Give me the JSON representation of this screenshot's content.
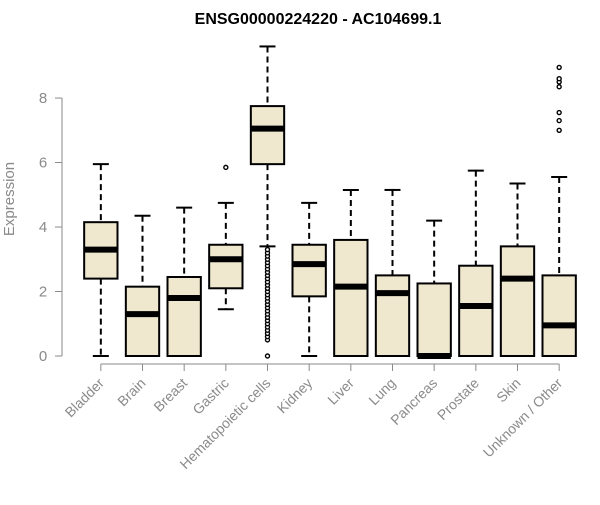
{
  "chart_data": {
    "type": "box",
    "title": "ENSG00000224220 - AC104699.1",
    "xlabel": "",
    "ylabel": "Expression",
    "ylim": [
      0,
      9.8
    ],
    "yticks": [
      0,
      2,
      4,
      6,
      8
    ],
    "box_fill": "#efe8cf",
    "grid": false,
    "categories": [
      "Bladder",
      "Brain",
      "Breast",
      "Gastric",
      "Hematopoietic cells",
      "Kidney",
      "Liver",
      "Lung",
      "Pancreas",
      "Prostate",
      "Skin",
      "Unknown / Other"
    ],
    "boxes": [
      {
        "min": 0.0,
        "q1": 2.4,
        "median": 3.3,
        "q3": 4.15,
        "max": 5.95,
        "outliers": []
      },
      {
        "min": 0.0,
        "q1": 0.0,
        "median": 1.3,
        "q3": 2.15,
        "max": 4.35,
        "outliers": []
      },
      {
        "min": 0.0,
        "q1": 0.0,
        "median": 1.8,
        "q3": 2.45,
        "max": 4.6,
        "outliers": []
      },
      {
        "min": 1.45,
        "q1": 2.1,
        "median": 3.0,
        "q3": 3.45,
        "max": 4.75,
        "outliers": [
          5.85
        ]
      },
      {
        "min": 3.4,
        "q1": 5.95,
        "median": 7.05,
        "q3": 7.75,
        "max": 9.6,
        "outliers": [
          0.0,
          0.5,
          0.6,
          0.7,
          0.8,
          0.9,
          1.0,
          1.1,
          1.2,
          1.3,
          1.4,
          1.5,
          1.6,
          1.7,
          1.8,
          1.9,
          2.0,
          2.1,
          2.2,
          2.3,
          2.4,
          2.5,
          2.6,
          2.7,
          2.8,
          2.9,
          3.0,
          3.1,
          3.2,
          3.3
        ]
      },
      {
        "min": 0.0,
        "q1": 1.85,
        "median": 2.85,
        "q3": 3.45,
        "max": 4.75,
        "outliers": []
      },
      {
        "min": 0.0,
        "q1": 0.0,
        "median": 2.15,
        "q3": 3.6,
        "max": 5.15,
        "outliers": []
      },
      {
        "min": 0.0,
        "q1": 0.0,
        "median": 1.95,
        "q3": 2.5,
        "max": 5.15,
        "outliers": []
      },
      {
        "min": 0.0,
        "q1": 0.0,
        "median": 0.0,
        "q3": 2.25,
        "max": 4.2,
        "outliers": []
      },
      {
        "min": 0.0,
        "q1": 0.0,
        "median": 1.55,
        "q3": 2.8,
        "max": 5.75,
        "outliers": []
      },
      {
        "min": 0.0,
        "q1": 0.0,
        "median": 2.4,
        "q3": 3.4,
        "max": 5.35,
        "outliers": []
      },
      {
        "min": 0.0,
        "q1": 0.0,
        "median": 0.95,
        "q3": 2.5,
        "max": 5.55,
        "outliers": [
          7.0,
          7.3,
          7.55,
          8.35,
          8.5,
          8.6,
          8.95
        ]
      }
    ]
  }
}
